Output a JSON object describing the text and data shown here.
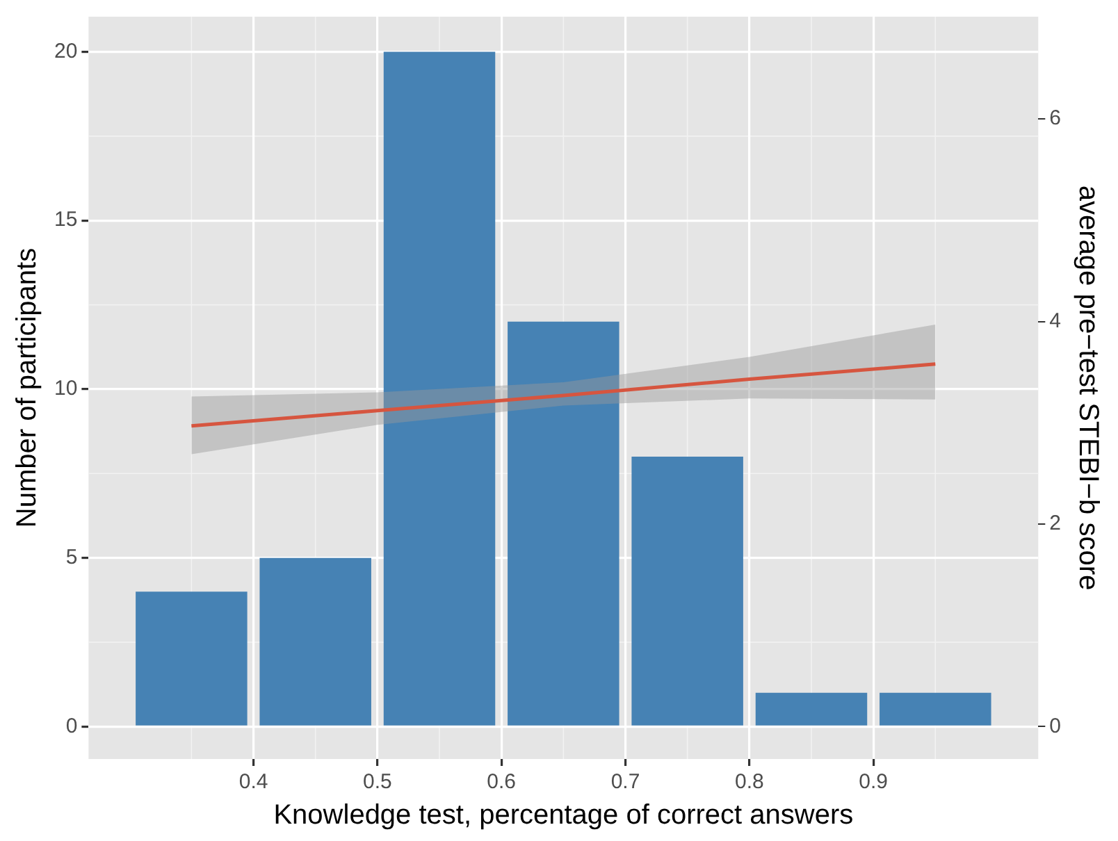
{
  "chart_data": {
    "type": "histogram",
    "xlabel": "Knowledge test, percentage of correct answers",
    "ylabel": "Number of participants",
    "y2label": "average pre−test STEBI−b score",
    "series": [
      {
        "type": "histogram",
        "bins": [
          0.3,
          0.4,
          0.5,
          0.6,
          0.7,
          0.8,
          0.9,
          1.0
        ],
        "values": [
          4,
          5,
          20,
          12,
          8,
          1,
          1
        ],
        "color": "#4682b4"
      },
      {
        "type": "line",
        "axis": "y2",
        "x": [
          0.35,
          0.5,
          0.65,
          0.8,
          0.95
        ],
        "values": [
          2.97,
          3.12,
          3.27,
          3.43,
          3.58
        ],
        "lower": [
          2.69,
          2.98,
          3.17,
          3.24,
          3.23
        ],
        "upper": [
          3.26,
          3.3,
          3.4,
          3.65,
          3.97
        ],
        "color": "#d6553f"
      }
    ],
    "xlim": [
      0.267,
      1.033
    ],
    "xticks": [
      0.4,
      0.5,
      0.6,
      0.7,
      0.8,
      0.9
    ],
    "ylim": [
      -0.96,
      21.04
    ],
    "yticks": [
      0,
      5,
      10,
      15,
      20
    ],
    "y2lim": [
      -0.32,
      7.01
    ],
    "y2ticks": [
      0,
      2,
      4,
      6
    ],
    "grid": true,
    "legend": false
  }
}
